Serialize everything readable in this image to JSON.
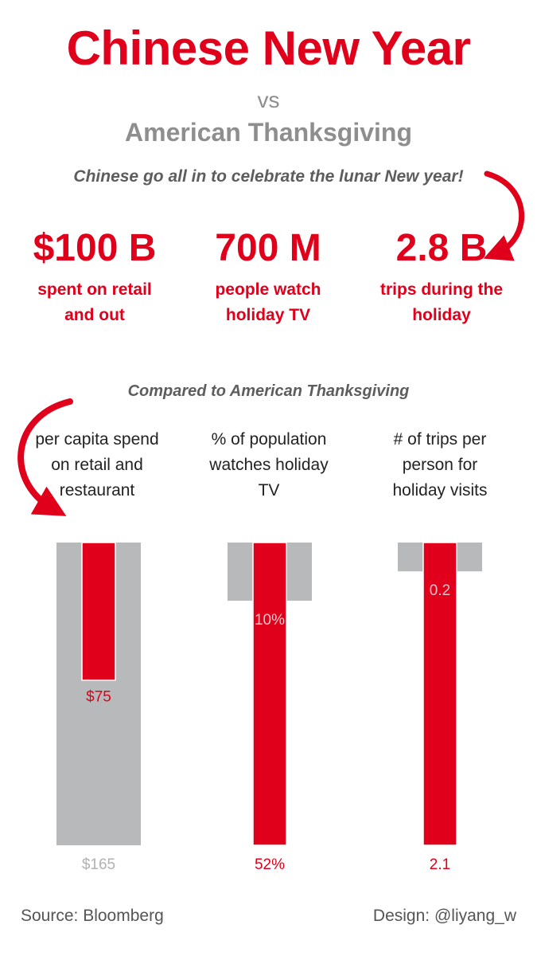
{
  "title": "Chinese New Year",
  "vs": "vs",
  "subtitle": "American Thanksgiving",
  "tagline": "Chinese go all in to celebrate the lunar New year!",
  "stats": [
    {
      "value": "$100 B",
      "label_line1": "spent on retail",
      "label_line2": "and out"
    },
    {
      "value": "700 M",
      "label_line1": "people watch",
      "label_line2": "holiday TV"
    },
    {
      "value": "2.8 B",
      "label_line1": "trips during the",
      "label_line2": "holiday"
    }
  ],
  "compare_heading": "Compared to American Thanksgiving",
  "metrics": [
    {
      "line1": "per capita spend",
      "line2": "on retail and",
      "line3": "restaurant"
    },
    {
      "line1": "% of population",
      "line2": "watches holiday",
      "line3": "TV"
    },
    {
      "line1": "# of trips per",
      "line2": "person for",
      "line3": "holiday visits"
    }
  ],
  "colors": {
    "china": "#e0001b",
    "usa": "#b8b9bb",
    "text_gray": "#8e8e8e"
  },
  "chart_data": {
    "type": "bar",
    "title": "Compared to American Thanksgiving",
    "layout": "inverted (bars hang down from a common top baseline), each metric scaled independently",
    "series": [
      {
        "name": "American Thanksgiving",
        "color": "#b8b9bb"
      },
      {
        "name": "Chinese New Year",
        "color": "#e0001b"
      }
    ],
    "groups": [
      {
        "metric": "per capita spend on retail and restaurant",
        "usa_value": 165,
        "usa_label": "$165",
        "china_value": 75,
        "china_label": "$75",
        "scale_max": 165
      },
      {
        "metric": "% of population watches holiday TV",
        "usa_value": 10,
        "usa_label": "10%",
        "china_value": 52,
        "china_label": "52%",
        "scale_max": 52
      },
      {
        "metric": "# of trips per person for holiday visits",
        "usa_value": 0.2,
        "usa_label": "0.2",
        "china_value": 2.1,
        "china_label": "2.1",
        "scale_max": 2.1
      }
    ]
  },
  "footer": {
    "source": "Source: Bloomberg",
    "design": "Design: @liyang_w"
  }
}
